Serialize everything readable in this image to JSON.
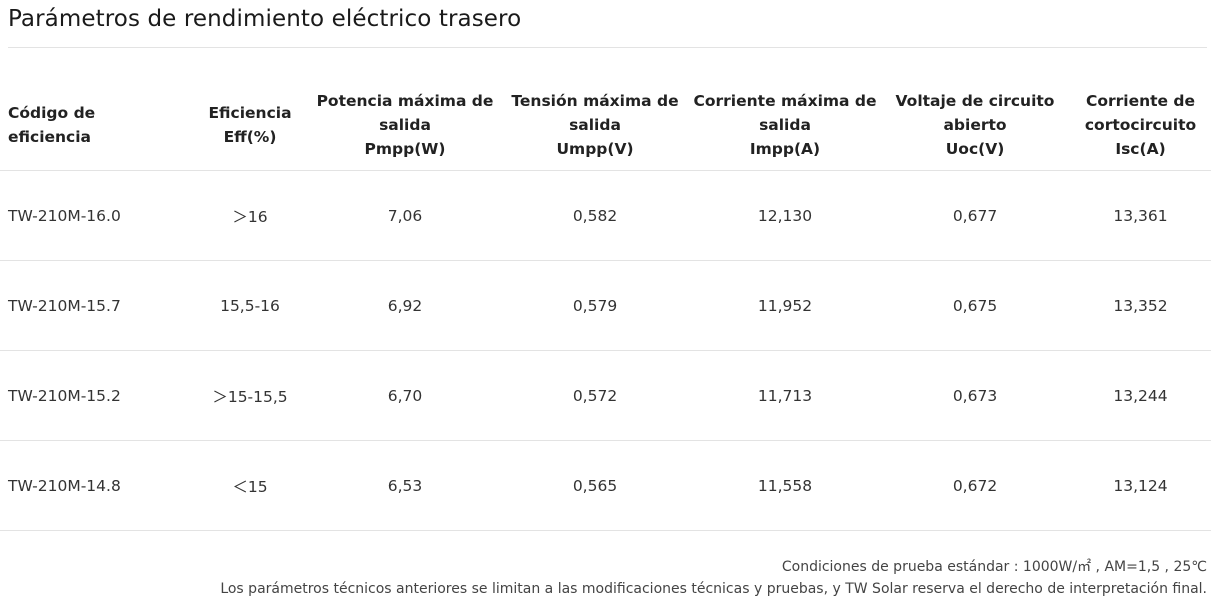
{
  "title": "Parámetros de rendimiento eléctrico trasero",
  "table": {
    "headers": [
      [
        "Código de",
        "eficiencia"
      ],
      [
        "Eficiencia",
        "Eff(%)"
      ],
      [
        "Potencia máxima de",
        "salida",
        "Pmpp(W)"
      ],
      [
        "Tensión máxima de",
        "salida",
        "Umpp(V)"
      ],
      [
        "Corriente máxima de",
        "salida",
        "Impp(A)"
      ],
      [
        "Voltaje de circuito",
        "abierto",
        "Uoc(V)"
      ],
      [
        "Corriente de",
        "cortocircuito",
        "Isc(A)"
      ]
    ],
    "rows": [
      [
        "TW-210M-16.0",
        "＞16",
        "7,06",
        "0,582",
        "12,130",
        "0,677",
        "13,361"
      ],
      [
        "TW-210M-15.7",
        "15,5-16",
        "6,92",
        "0,579",
        "11,952",
        "0,675",
        "13,352"
      ],
      [
        "TW-210M-15.2",
        "＞15-15,5",
        "6,70",
        "0,572",
        "11,713",
        "0,673",
        "13,244"
      ],
      [
        "TW-210M-14.8",
        "＜15",
        "6,53",
        "0,565",
        "11,558",
        "0,672",
        "13,124"
      ]
    ]
  },
  "footnotes": {
    "conditions": "Condiciones de prueba estándar : 1000W/㎡ , AM=1,5 , 25℃",
    "disclaimer": "Los parámetros técnicos anteriores se limitan a las modificaciones técnicas y pruebas, y TW Solar reserva el derecho de interpretación final."
  }
}
